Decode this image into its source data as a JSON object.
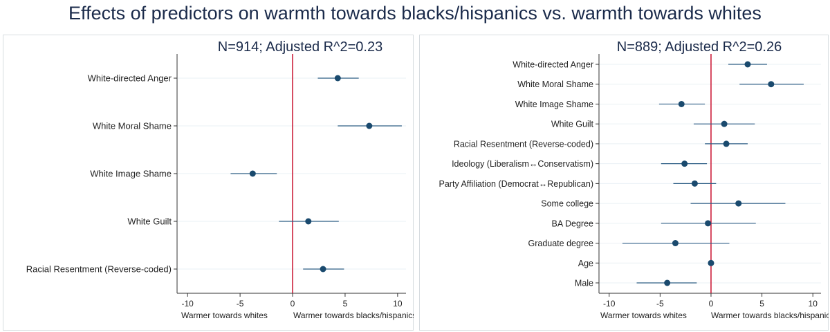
{
  "title": "Effects of predictors on warmth towards blacks/hispanics vs. warmth towards whites",
  "colors": {
    "title": "#1a2a4a",
    "point": "#1a4a6e",
    "ci": "#2c5d85",
    "zero_line": "#c8102e",
    "grid": "#eaf0f4",
    "panel_border": "#d7dce0"
  },
  "chart_data": [
    {
      "type": "scatter",
      "subtitle": "N=914; Adjusted R^2=0.23",
      "xlim": [
        -11,
        10.8
      ],
      "xticks": [
        -10,
        -5,
        0,
        5,
        10
      ],
      "xlabel_left": "Warmer towards whites",
      "xlabel_right": "Warmer towards blacks/hispanics",
      "reference_line": 0,
      "grid": true,
      "predictors": [
        {
          "label": "White-directed Anger",
          "estimate": 4.3,
          "ci_low": 2.4,
          "ci_high": 6.3
        },
        {
          "label": "White Moral Shame",
          "estimate": 7.3,
          "ci_low": 4.3,
          "ci_high": 10.4
        },
        {
          "label": "White Image Shame",
          "estimate": -3.8,
          "ci_low": -5.9,
          "ci_high": -1.5
        },
        {
          "label": "White Guilt",
          "estimate": 1.5,
          "ci_low": -1.3,
          "ci_high": 4.4
        },
        {
          "label": "Racial Resentment (Reverse-coded)",
          "estimate": 2.9,
          "ci_low": 1.0,
          "ci_high": 4.9
        }
      ]
    },
    {
      "type": "scatter",
      "subtitle": "N=889; Adjusted R^2=0.26",
      "xlim": [
        -11,
        10.8
      ],
      "xticks": [
        -10,
        -5,
        0,
        5,
        10
      ],
      "xlabel_left": "Warmer towards whites",
      "xlabel_right": "Warmer towards blacks/hispanics",
      "reference_line": 0,
      "grid": true,
      "predictors": [
        {
          "label": "White-directed Anger",
          "estimate": 3.6,
          "ci_low": 1.7,
          "ci_high": 5.5
        },
        {
          "label": "White Moral Shame",
          "estimate": 5.9,
          "ci_low": 2.8,
          "ci_high": 9.1
        },
        {
          "label": "White Image Shame",
          "estimate": -2.9,
          "ci_low": -5.1,
          "ci_high": -0.6
        },
        {
          "label": "White Guilt",
          "estimate": 1.3,
          "ci_low": -1.7,
          "ci_high": 4.3
        },
        {
          "label": "Racial Resentment (Reverse-coded)",
          "estimate": 1.5,
          "ci_low": -0.6,
          "ci_high": 3.6
        },
        {
          "label": "Ideology (Liberalism↔Conservatism)",
          "estimate": -2.6,
          "ci_low": -4.9,
          "ci_high": -0.4
        },
        {
          "label": "Party Affiliation (Democrat↔Republican)",
          "estimate": -1.6,
          "ci_low": -3.7,
          "ci_high": 0.5
        },
        {
          "label": "Some college",
          "estimate": 2.7,
          "ci_low": -2.0,
          "ci_high": 7.3
        },
        {
          "label": "BA Degree",
          "estimate": -0.3,
          "ci_low": -4.9,
          "ci_high": 4.4
        },
        {
          "label": "Graduate degree",
          "estimate": -3.5,
          "ci_low": -8.7,
          "ci_high": 1.8
        },
        {
          "label": "Age",
          "estimate": 0.0,
          "ci_low": -0.1,
          "ci_high": 0.1
        },
        {
          "label": "Male",
          "estimate": -4.3,
          "ci_low": -7.3,
          "ci_high": -1.4
        }
      ]
    }
  ]
}
